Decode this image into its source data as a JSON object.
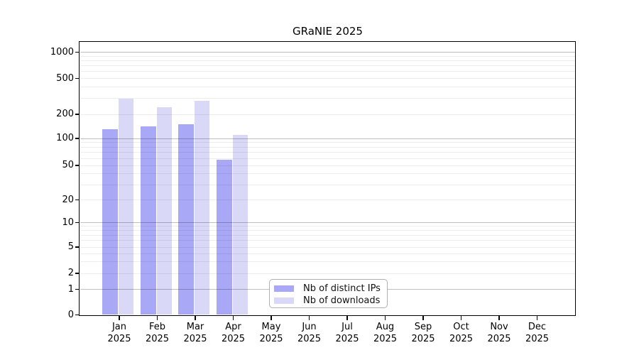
{
  "title": "GRaNIE 2025",
  "chart_data": {
    "type": "bar",
    "title": "GRaNIE 2025",
    "categories": [
      "Jan 2025",
      "Feb 2025",
      "Mar 2025",
      "Apr 2025",
      "May 2025",
      "Jun 2025",
      "Jul 2025",
      "Aug 2025",
      "Sep 2025",
      "Oct 2025",
      "Nov 2025",
      "Dec 2025"
    ],
    "series": [
      {
        "name": "Nb of distinct IPs",
        "color": "#a8a8f7",
        "values": [
          130,
          140,
          150,
          58,
          null,
          null,
          null,
          null,
          null,
          null,
          null,
          null
        ]
      },
      {
        "name": "Nb of downloads",
        "color": "#d9d9f7",
        "values": [
          300,
          240,
          280,
          110,
          null,
          null,
          null,
          null,
          null,
          null,
          null,
          null
        ]
      }
    ],
    "yscale": "symlog",
    "yticks": [
      0,
      1,
      2,
      5,
      10,
      20,
      50,
      100,
      200,
      500,
      1000
    ],
    "ylim": [
      0,
      1000
    ],
    "xlabel": "",
    "ylabel": "",
    "grid": "horizontal",
    "legend_position": "inside-bottom-center"
  }
}
